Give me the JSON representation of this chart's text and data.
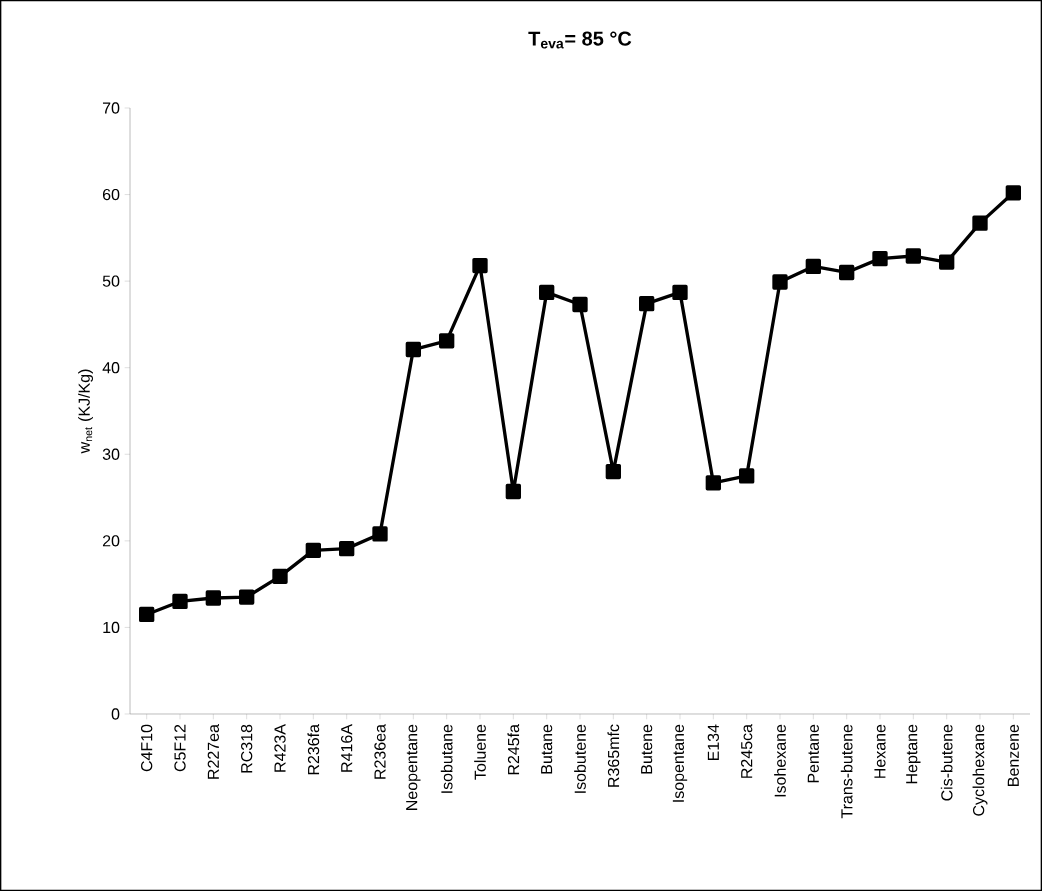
{
  "chart_data": {
    "type": "line",
    "title": "**T$_{eva}$= 85 °C**",
    "ylabel": "w$_{net}$ (KJ/Kg)",
    "categories": [
      "C4F10",
      "C5F12",
      "R227ea",
      "RC318",
      "R423A",
      "R236fa",
      "R416A",
      "R236ea",
      "Neopentane",
      "Isobutane",
      "Toluene",
      "R245fa",
      "Butane",
      "Isobutene",
      "R365mfc",
      "Butene",
      "Isopentane",
      "E134",
      "R245ca",
      "Isohexane",
      "Pentane",
      "Trans-butene",
      "Hexane",
      "Heptane",
      "Cis-butene",
      "Cyclohexane",
      "Benzene"
    ],
    "series": [
      {
        "color": "#000000",
        "values": [
          11.5,
          13.0,
          13.4,
          13.5,
          15.9,
          18.9,
          19.1,
          20.8,
          42.1,
          43.1,
          51.8,
          25.7,
          48.7,
          47.3,
          28.0,
          47.4,
          48.7,
          26.7,
          27.5,
          49.9,
          51.7,
          51.0,
          52.6,
          52.9,
          52.2,
          56.7,
          60.2
        ]
      }
    ],
    "ylim": [
      0,
      70
    ],
    "yticks": [
      0,
      10,
      20,
      30,
      40,
      50,
      60,
      70
    ],
    "grid": false,
    "marker": "square",
    "line_style": "solid"
  }
}
